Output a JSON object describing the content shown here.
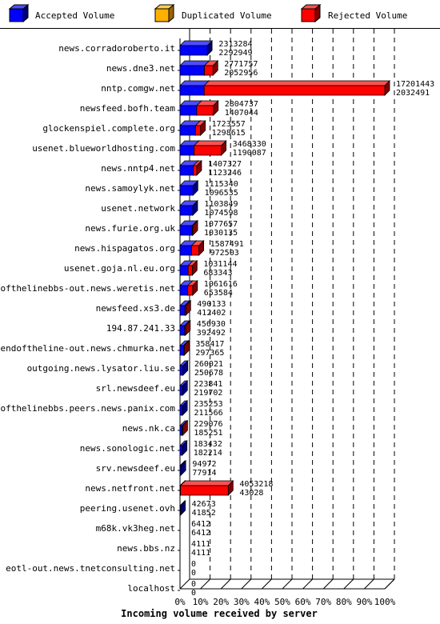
{
  "chart_data": {
    "type": "bar",
    "orientation": "horizontal",
    "stacked": true,
    "legend_placement": "top",
    "xlabel": "Incoming volume received by server",
    "xlim": [
      0,
      100
    ],
    "xticks": [
      "0%",
      "10%",
      "20%",
      "30%",
      "40%",
      "50%",
      "60%",
      "70%",
      "80%",
      "90%",
      "100%"
    ],
    "series": [
      {
        "name": "Accepted Volume",
        "color": "#0000ff"
      },
      {
        "name": "Duplicated Volume",
        "color": "#ffb000"
      },
      {
        "name": "Rejected Volume",
        "color": "#ff0000"
      }
    ],
    "categories": [
      "news.corradoroberto.it",
      "news.dne3.net",
      "nntp.comgw.net",
      "newsfeed.bofh.team",
      "glockenspiel.complete.org",
      "usenet.blueworldhosting.com",
      "news.nntp4.net",
      "news.samoylyk.net",
      "usenet.network",
      "news.furie.org.uk",
      "news.hispagatos.org",
      "usenet.goja.nl.eu.org",
      "endofthelinebbs-out.news.weretis.net",
      "newsfeed.xs3.de",
      "194.87.241.33",
      "endoftheline-out.news.chmurka.net",
      "outgoing.news.lysator.liu.se",
      "srl.newsdeef.eu",
      "endofthelinebbs.peers.news.panix.com",
      "news.nk.ca",
      "news.sonologic.net",
      "srv.newsdeef.eu",
      "news.netfront.net",
      "peering.usenet.ovh",
      "m68k.vk3heg.net",
      "news.bbs.nz",
      "eotl-out.news.tnetconsulting.net",
      "localhost"
    ],
    "total_values": [
      "2313284",
      "2771757",
      "17201443",
      "2804737",
      "1723557",
      "3468330",
      "1407327",
      "1115340",
      "1103849",
      "1077657",
      "1587491",
      "1031144",
      "1061616",
      "490133",
      "456930",
      "358417",
      "260021",
      "223841",
      "235253",
      "229076",
      "183432",
      "94972",
      "4053218",
      "42673",
      "6412",
      "4111",
      "0",
      "0"
    ],
    "accepted_values": [
      "2292949",
      "2052956",
      "2032491",
      "1407044",
      "1298615",
      "1190087",
      "1123246",
      "1096535",
      "1074598",
      "1030135",
      "972503",
      "683343",
      "653584",
      "412402",
      "392492",
      "297365",
      "250678",
      "219702",
      "211566",
      "185251",
      "182214",
      "77914",
      "43028",
      "41852",
      "6412",
      "4111",
      "0",
      "0"
    ]
  }
}
